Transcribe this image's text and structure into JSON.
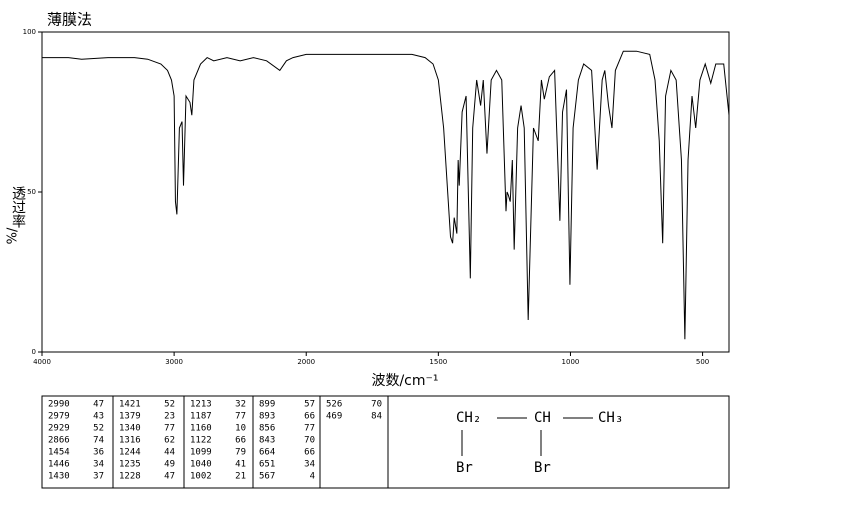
{
  "chart_data": {
    "type": "line",
    "title": "薄膜法",
    "y_label": "透过率",
    "y_unit": "%/",
    "x_label": "波数/cm⁻¹",
    "xlim": [
      4000,
      400
    ],
    "xscale": {
      "break": 2000,
      "ratio": 2
    },
    "xticks": [
      4000,
      3000,
      2000,
      1500,
      1000,
      500
    ],
    "ylim": [
      0,
      100
    ],
    "yticks": [
      0,
      50,
      100
    ],
    "color": "#000000",
    "x": [
      4000,
      3800,
      3700,
      3500,
      3300,
      3200,
      3100,
      3050,
      3020,
      3000,
      2990,
      2979,
      2960,
      2940,
      2929,
      2910,
      2880,
      2866,
      2850,
      2800,
      2750,
      2700,
      2600,
      2500,
      2400,
      2300,
      2200,
      2150,
      2100,
      2000,
      1900,
      1800,
      1700,
      1600,
      1550,
      1520,
      1500,
      1480,
      1454,
      1446,
      1440,
      1430,
      1425,
      1421,
      1410,
      1395,
      1379,
      1370,
      1355,
      1340,
      1330,
      1316,
      1300,
      1280,
      1260,
      1244,
      1240,
      1235,
      1228,
      1220,
      1213,
      1200,
      1187,
      1175,
      1160,
      1140,
      1122,
      1110,
      1099,
      1080,
      1060,
      1040,
      1030,
      1015,
      1002,
      990,
      970,
      950,
      920,
      899,
      893,
      880,
      870,
      856,
      843,
      830,
      800,
      750,
      700,
      680,
      664,
      651,
      640,
      620,
      600,
      580,
      567,
      555,
      540,
      526,
      510,
      490,
      469,
      450,
      420,
      400
    ],
    "values": [
      92,
      92,
      91.5,
      92,
      92,
      91.5,
      90,
      88,
      85,
      80,
      47,
      43,
      70,
      72,
      52,
      80,
      78,
      74,
      85,
      90,
      92,
      91,
      92,
      91,
      92,
      91,
      88,
      91,
      92,
      93,
      93,
      93,
      93,
      93,
      92,
      90,
      85,
      70,
      36,
      34,
      42,
      37,
      60,
      52,
      75,
      80,
      23,
      70,
      85,
      77,
      85,
      62,
      85,
      88,
      85,
      44,
      50,
      49,
      47,
      60,
      32,
      70,
      77,
      70,
      10,
      70,
      66,
      85,
      79,
      86,
      88,
      41,
      75,
      82,
      21,
      70,
      85,
      90,
      88,
      57,
      66,
      85,
      88,
      77,
      70,
      88,
      94,
      94,
      93,
      85,
      66,
      34,
      80,
      88,
      85,
      60,
      4,
      60,
      80,
      70,
      85,
      90,
      84,
      90,
      90,
      74
    ]
  },
  "peak_table": [
    [
      2990,
      47
    ],
    [
      2979,
      43
    ],
    [
      2929,
      52
    ],
    [
      2866,
      74
    ],
    [
      1454,
      36
    ],
    [
      1446,
      34
    ],
    [
      1430,
      37
    ],
    [
      1421,
      52
    ],
    [
      1379,
      23
    ],
    [
      1340,
      77
    ],
    [
      1316,
      62
    ],
    [
      1244,
      44
    ],
    [
      1235,
      49
    ],
    [
      1228,
      47
    ],
    [
      1213,
      32
    ],
    [
      1187,
      77
    ],
    [
      1160,
      10
    ],
    [
      1122,
      66
    ],
    [
      1099,
      79
    ],
    [
      1040,
      41
    ],
    [
      1002,
      21
    ],
    [
      899,
      57
    ],
    [
      893,
      66
    ],
    [
      856,
      77
    ],
    [
      843,
      70
    ],
    [
      664,
      66
    ],
    [
      651,
      34
    ],
    [
      567,
      4
    ],
    [
      526,
      70
    ],
    [
      469,
      84
    ]
  ],
  "structure": {
    "chain": [
      "CH₂",
      "CH",
      "CH₃"
    ],
    "substituents": [
      "Br",
      "Br"
    ]
  }
}
